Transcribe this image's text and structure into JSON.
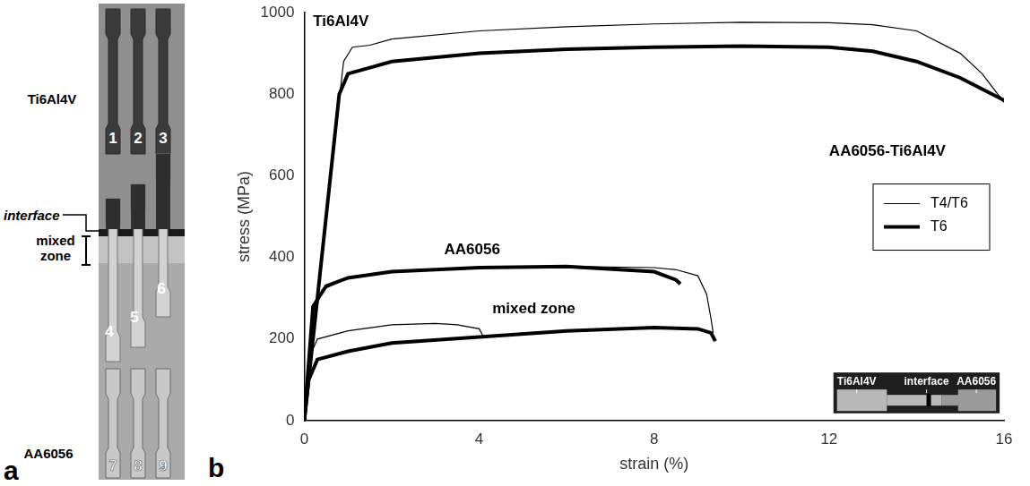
{
  "panel_a": {
    "letter": "a",
    "labels": {
      "top": "Ti6Al4V",
      "interface": "interface",
      "mixed_zone": "mixed zone",
      "bottom": "AA6056"
    },
    "specimens": [
      "1",
      "2",
      "3",
      "4",
      "5",
      "6",
      "7",
      "8",
      "9"
    ]
  },
  "chart_data": {
    "type": "line",
    "letter": "b",
    "x_label": "strain (%)",
    "y_label": "stress (MPa)",
    "xlim": [
      0,
      16
    ],
    "xticks": [
      0,
      4,
      8,
      12,
      16
    ],
    "ylim": [
      0,
      1000
    ],
    "yticks": [
      0,
      200,
      400,
      600,
      800,
      1000
    ],
    "grid": false,
    "legend": "right",
    "series": [
      {
        "name": "T4/T6",
        "color": "#000000",
        "line_style": "thin",
        "x": [
          0,
          0.3,
          0.6,
          0.9,
          1.1,
          1.5,
          2,
          4,
          6,
          8,
          10,
          12,
          13,
          14,
          15,
          15.5,
          16
        ],
        "values": [
          0,
          300,
          600,
          880,
          915,
          920,
          935,
          955,
          965,
          972,
          976,
          975,
          970,
          955,
          900,
          850,
          780
        ]
      },
      {
        "name": "T6",
        "color": "#000000",
        "line_style": "thick",
        "x": [
          0,
          0.5,
          0.8,
          1.0,
          1.5,
          2,
          4,
          6,
          8,
          10,
          12,
          13,
          14,
          15,
          16
        ],
        "values": [
          0,
          500,
          800,
          850,
          865,
          880,
          900,
          910,
          915,
          918,
          915,
          905,
          880,
          840,
          785
        ]
      },
      {
        "name": "T4/T6",
        "color": "#000000",
        "line_style": "thin",
        "x": [
          0,
          0.2,
          0.4,
          1,
          2,
          4,
          6,
          8,
          8.5,
          9,
          9.2,
          9.3,
          9.35
        ],
        "values": [
          0,
          250,
          320,
          350,
          365,
          375,
          378,
          375,
          370,
          355,
          310,
          250,
          215
        ]
      },
      {
        "name": "T6",
        "color": "#000000",
        "line_style": "thick",
        "x": [
          0,
          0.2,
          0.5,
          1,
          2,
          4,
          6,
          8,
          8.5,
          8.6
        ],
        "values": [
          0,
          280,
          330,
          350,
          365,
          375,
          378,
          365,
          345,
          335
        ]
      },
      {
        "name": "T4/T6",
        "color": "#000000",
        "line_style": "thin",
        "x": [
          0,
          0.1,
          0.3,
          1,
          2,
          3,
          3.5,
          4,
          4.1
        ],
        "values": [
          0,
          150,
          200,
          220,
          235,
          238,
          235,
          225,
          205
        ]
      },
      {
        "name": "T6",
        "color": "#000000",
        "line_style": "thick",
        "x": [
          0,
          0.1,
          0.3,
          1,
          2,
          4,
          6,
          8,
          9,
          9.3,
          9.4
        ],
        "values": [
          0,
          100,
          150,
          170,
          190,
          205,
          220,
          228,
          225,
          215,
          195
        ]
      }
    ],
    "annotations": [
      {
        "text": "Ti6Al4V",
        "x": 0.2,
        "y": 958
      },
      {
        "text": "AA6056",
        "x": 3.2,
        "y": 400
      },
      {
        "text": "mixed zone",
        "x": 4.3,
        "y": 255
      },
      {
        "text": "AA6056-Ti6Al4V",
        "x": 12.0,
        "y": 640
      }
    ],
    "inset_labels": [
      "Ti6Al4V",
      "interface",
      "AA6056"
    ]
  }
}
